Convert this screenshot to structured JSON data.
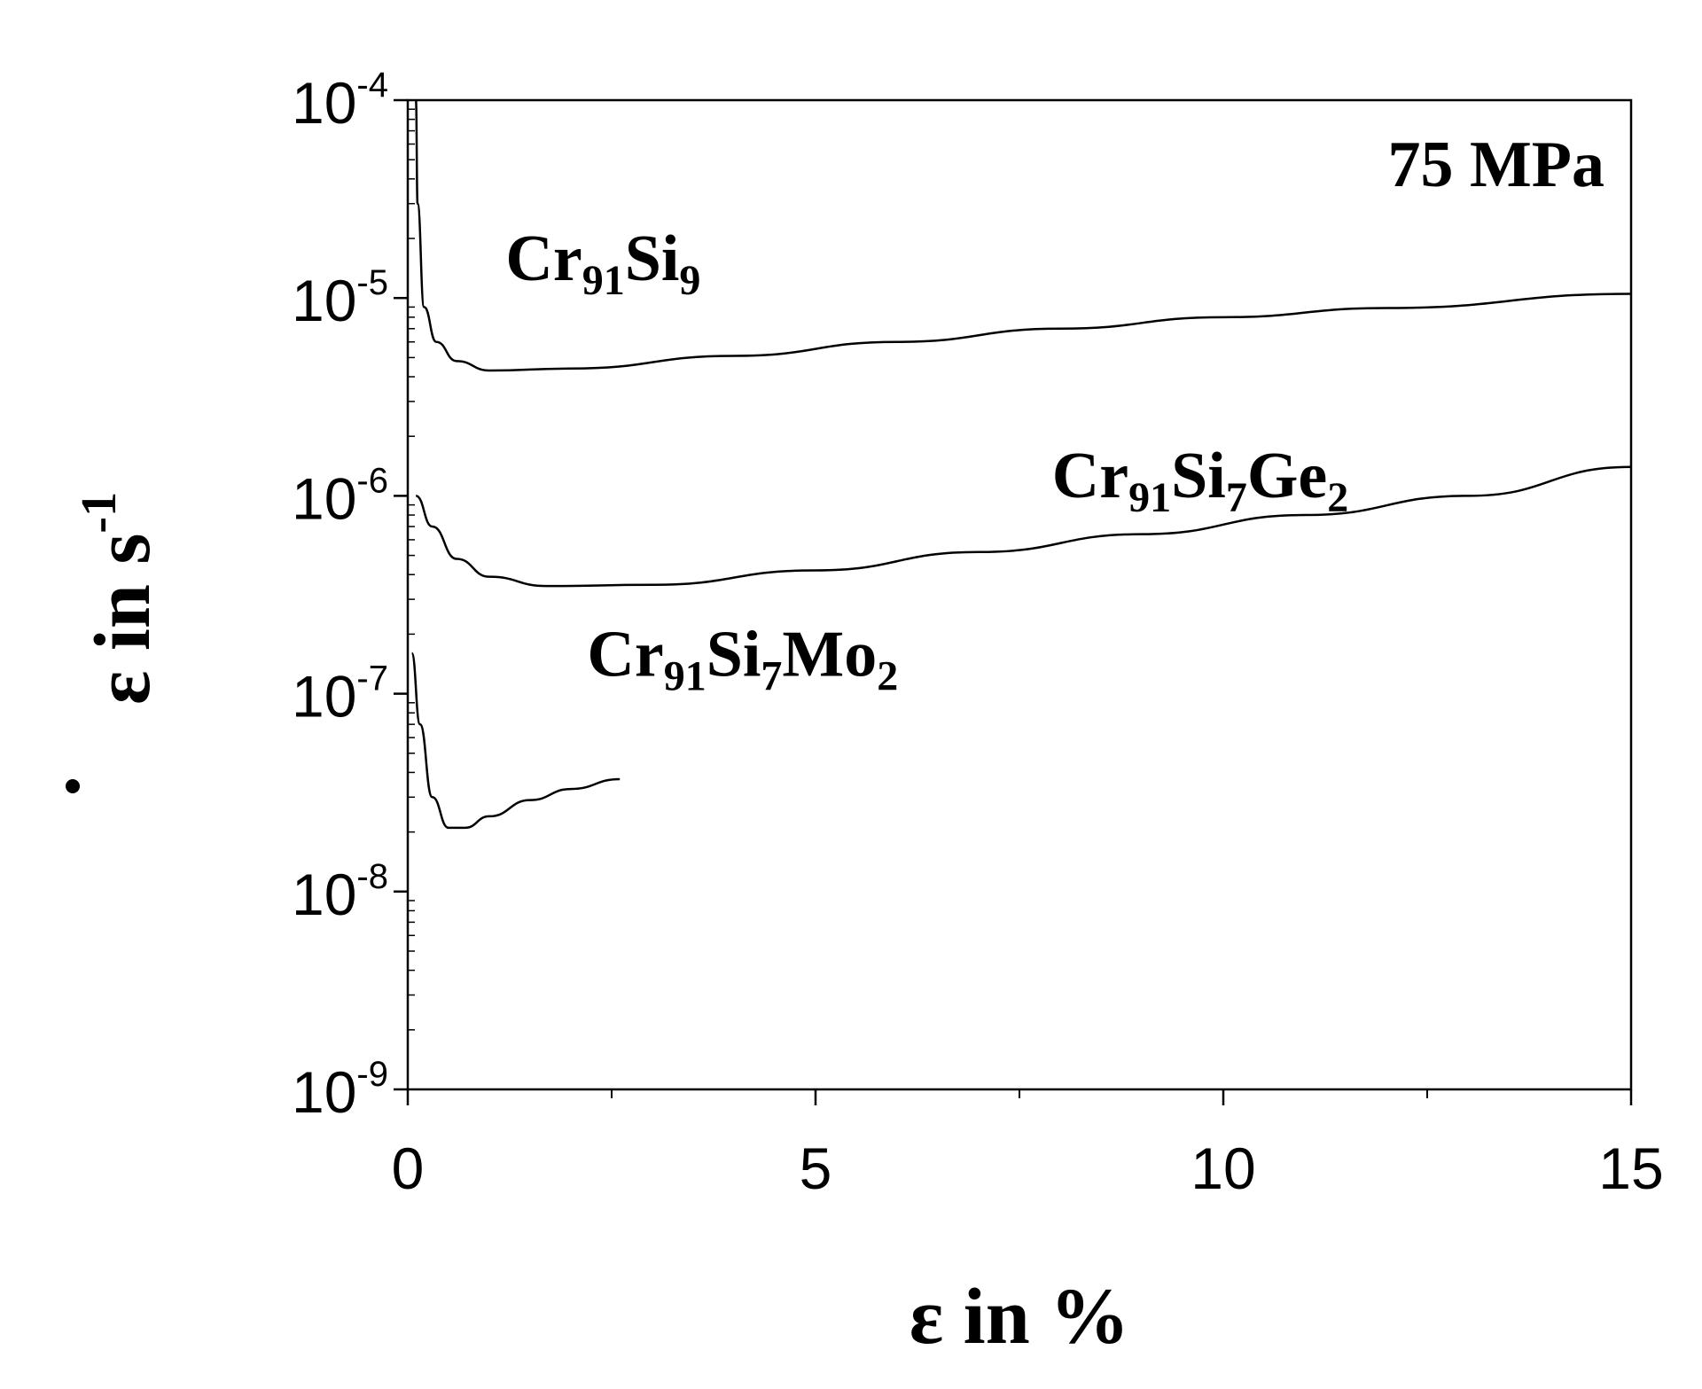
{
  "chart_data": {
    "type": "line",
    "xlabel": "ε in %",
    "ylabel": "ε̇ in s-1",
    "ylabel_parts": {
      "symbol": "ε",
      "mid": " in s",
      "exp": "-1"
    },
    "xlim": [
      0,
      15
    ],
    "ylim": [
      1e-09,
      0.0001
    ],
    "yscale": "log",
    "x_ticks": [
      "0",
      "5",
      "10",
      "15"
    ],
    "x_tick_values": [
      0,
      5,
      10,
      15
    ],
    "y_ticks": [
      {
        "value": 0.0001,
        "base": "10",
        "exp": "-4"
      },
      {
        "value": 1e-05,
        "base": "10",
        "exp": "-5"
      },
      {
        "value": 1e-06,
        "base": "10",
        "exp": "-6"
      },
      {
        "value": 1e-07,
        "base": "10",
        "exp": "-7"
      },
      {
        "value": 1e-08,
        "base": "10",
        "exp": "-8"
      },
      {
        "value": 1e-09,
        "base": "10",
        "exp": "-9"
      }
    ],
    "annotation": "75 MPa",
    "series": [
      {
        "name": "Cr91Si9",
        "label_parts": [
          [
            "Cr",
            ""
          ],
          [
            "91",
            "sub"
          ],
          [
            "Si",
            ""
          ],
          [
            "9",
            "sub"
          ]
        ],
        "points": [
          [
            0.1,
            0.0001
          ],
          [
            0.12,
            3e-05
          ],
          [
            0.2,
            9e-06
          ],
          [
            0.35,
            6e-06
          ],
          [
            0.6,
            4.8e-06
          ],
          [
            1.0,
            4.3e-06
          ],
          [
            2.0,
            4.4e-06
          ],
          [
            4.0,
            5.1e-06
          ],
          [
            6.0,
            6e-06
          ],
          [
            8.0,
            7e-06
          ],
          [
            10.0,
            8e-06
          ],
          [
            12.0,
            8.9e-06
          ],
          [
            15.0,
            1.05e-05
          ]
        ]
      },
      {
        "name": "Cr91Si7Ge2",
        "label_parts": [
          [
            "Cr",
            ""
          ],
          [
            "91",
            "sub"
          ],
          [
            "Si",
            ""
          ],
          [
            "7",
            "sub"
          ],
          [
            "Ge",
            ""
          ],
          [
            "2",
            "sub"
          ]
        ],
        "points": [
          [
            0.1,
            1e-06
          ],
          [
            0.3,
            7e-07
          ],
          [
            0.6,
            4.8e-07
          ],
          [
            1.0,
            3.9e-07
          ],
          [
            1.7,
            3.5e-07
          ],
          [
            3.0,
            3.55e-07
          ],
          [
            5.0,
            4.2e-07
          ],
          [
            7.0,
            5.2e-07
          ],
          [
            9.0,
            6.4e-07
          ],
          [
            11.0,
            8e-07
          ],
          [
            13.0,
            1e-06
          ],
          [
            15.0,
            1.4e-06
          ]
        ]
      },
      {
        "name": "Cr91Si7Mo2",
        "label_parts": [
          [
            "Cr",
            ""
          ],
          [
            "91",
            "sub"
          ],
          [
            "Si",
            ""
          ],
          [
            "7",
            "sub"
          ],
          [
            "Mo",
            ""
          ],
          [
            "2",
            "sub"
          ]
        ],
        "points": [
          [
            0.05,
            1.6e-07
          ],
          [
            0.15,
            7e-08
          ],
          [
            0.3,
            3e-08
          ],
          [
            0.5,
            2.1e-08
          ],
          [
            0.7,
            2.1e-08
          ],
          [
            1.0,
            2.4e-08
          ],
          [
            1.5,
            2.9e-08
          ],
          [
            2.0,
            3.3e-08
          ],
          [
            2.6,
            3.7e-08
          ]
        ]
      }
    ]
  }
}
